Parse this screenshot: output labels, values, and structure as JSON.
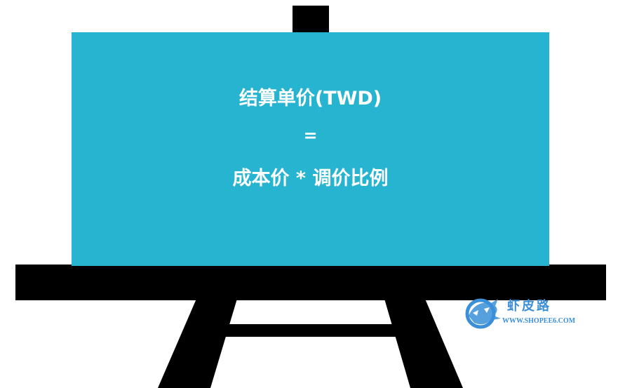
{
  "board": {
    "line1": "结算单价(TWD)",
    "line2": "=",
    "line3": "成本价 * 调价比例"
  },
  "watermark": {
    "title": "虾皮路",
    "url": "WWW.SHOPEE6.COM"
  },
  "colors": {
    "board": "#27b4d1",
    "frame": "#000000",
    "text": "#ffffff",
    "watermark": "#3a8fd8"
  }
}
